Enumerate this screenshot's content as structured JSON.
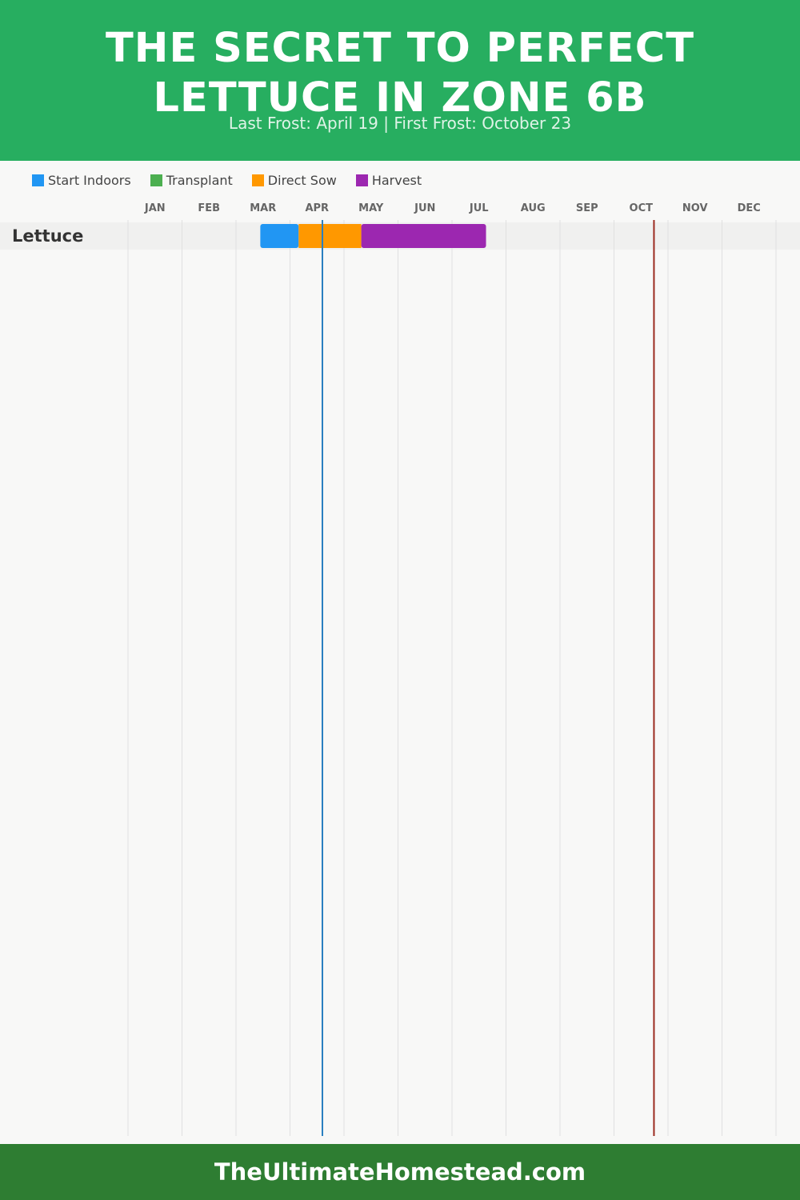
{
  "header": {
    "title_line1": "THE SECRET TO PERFECT",
    "title_line2": "LETTUCE IN ZONE 6B",
    "subtitle": "Last Frost: April 19 | First Frost: October 23"
  },
  "footer": {
    "site": "TheUltimateHomestead.com"
  },
  "colors": {
    "header_bg": "#27ae60",
    "footer_bg": "#2e7d32",
    "last_frost_line": "#2a7fc0",
    "first_frost_line": "#9b2a1f"
  },
  "chart_data": {
    "type": "gantt",
    "months": [
      "JAN",
      "FEB",
      "MAR",
      "APR",
      "MAY",
      "JUN",
      "JUL",
      "AUG",
      "SEP",
      "OCT",
      "NOV",
      "DEC"
    ],
    "legend": [
      {
        "label": "Start Indoors",
        "color": "#2196f3"
      },
      {
        "label": "Transplant",
        "color": "#4caf50"
      },
      {
        "label": "Direct Sow",
        "color": "#ff9800"
      },
      {
        "label": "Harvest",
        "color": "#9c27b0"
      }
    ],
    "rows": [
      {
        "crop": "Lettuce",
        "segments": [
          {
            "activity": "Start Indoors",
            "start": "Mar 15",
            "end": "Apr 5",
            "start_month": 3.45,
            "end_month": 4.16,
            "color": "#2196f3"
          },
          {
            "activity": "Direct Sow",
            "start": "Apr 5",
            "end": "May 10",
            "start_month": 4.16,
            "end_month": 5.32,
            "color": "#ff9800"
          },
          {
            "activity": "Harvest",
            "start": "May 10",
            "end": "Jul 15",
            "start_month": 5.32,
            "end_month": 7.63,
            "color": "#9c27b0"
          }
        ]
      }
    ],
    "markers": [
      {
        "name": "Last Frost",
        "date": "April 19",
        "month": 4.6,
        "color": "#2a7fc0"
      },
      {
        "name": "First Frost",
        "date": "October 23",
        "month": 10.74,
        "color": "#9b2a1f"
      }
    ],
    "grid": true,
    "legend_position": "top-left"
  }
}
